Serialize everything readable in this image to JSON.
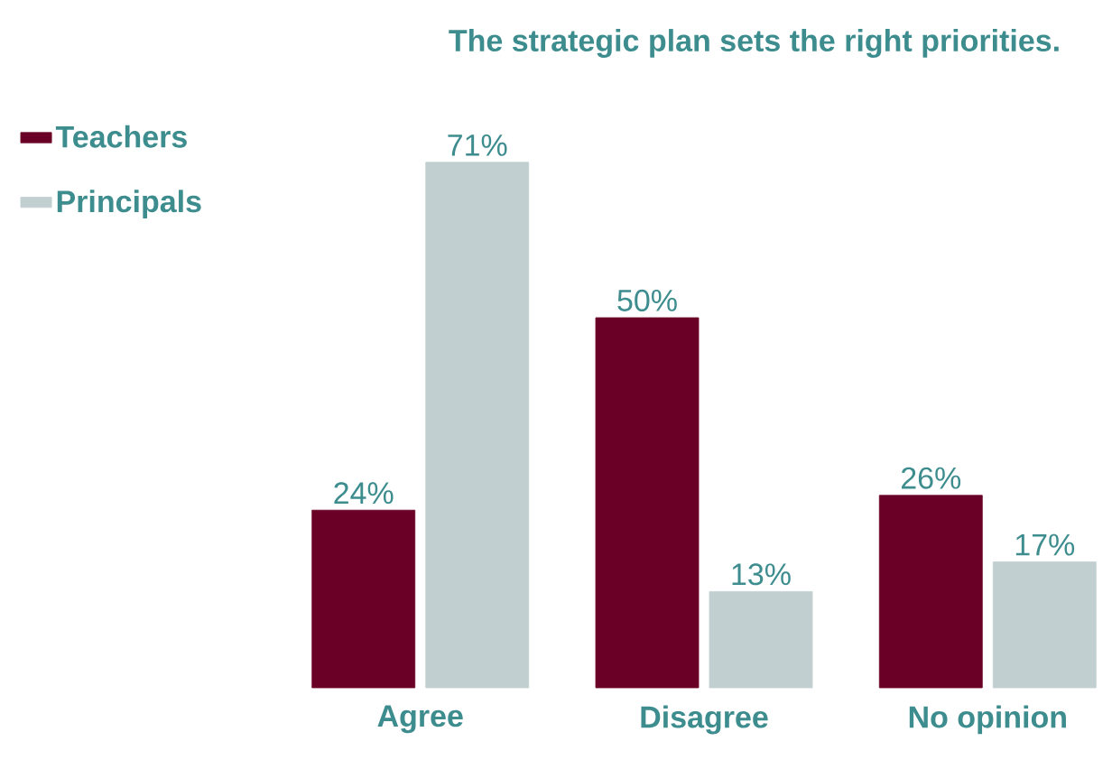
{
  "chart_data": {
    "type": "bar",
    "title": "The strategic plan sets the right priorities.",
    "categories": [
      "Agree",
      "Disagree",
      "No opinion"
    ],
    "series": [
      {
        "name": "Teachers",
        "color": "#6a0026",
        "values": [
          24,
          50,
          26
        ],
        "value_labels": [
          "24%",
          "50%",
          "26%"
        ]
      },
      {
        "name": "Principals",
        "color": "#c1cfd0",
        "values": [
          71,
          13,
          17
        ],
        "value_labels": [
          "71%",
          "13%",
          "17%"
        ]
      }
    ],
    "legend": "top left"
  }
}
